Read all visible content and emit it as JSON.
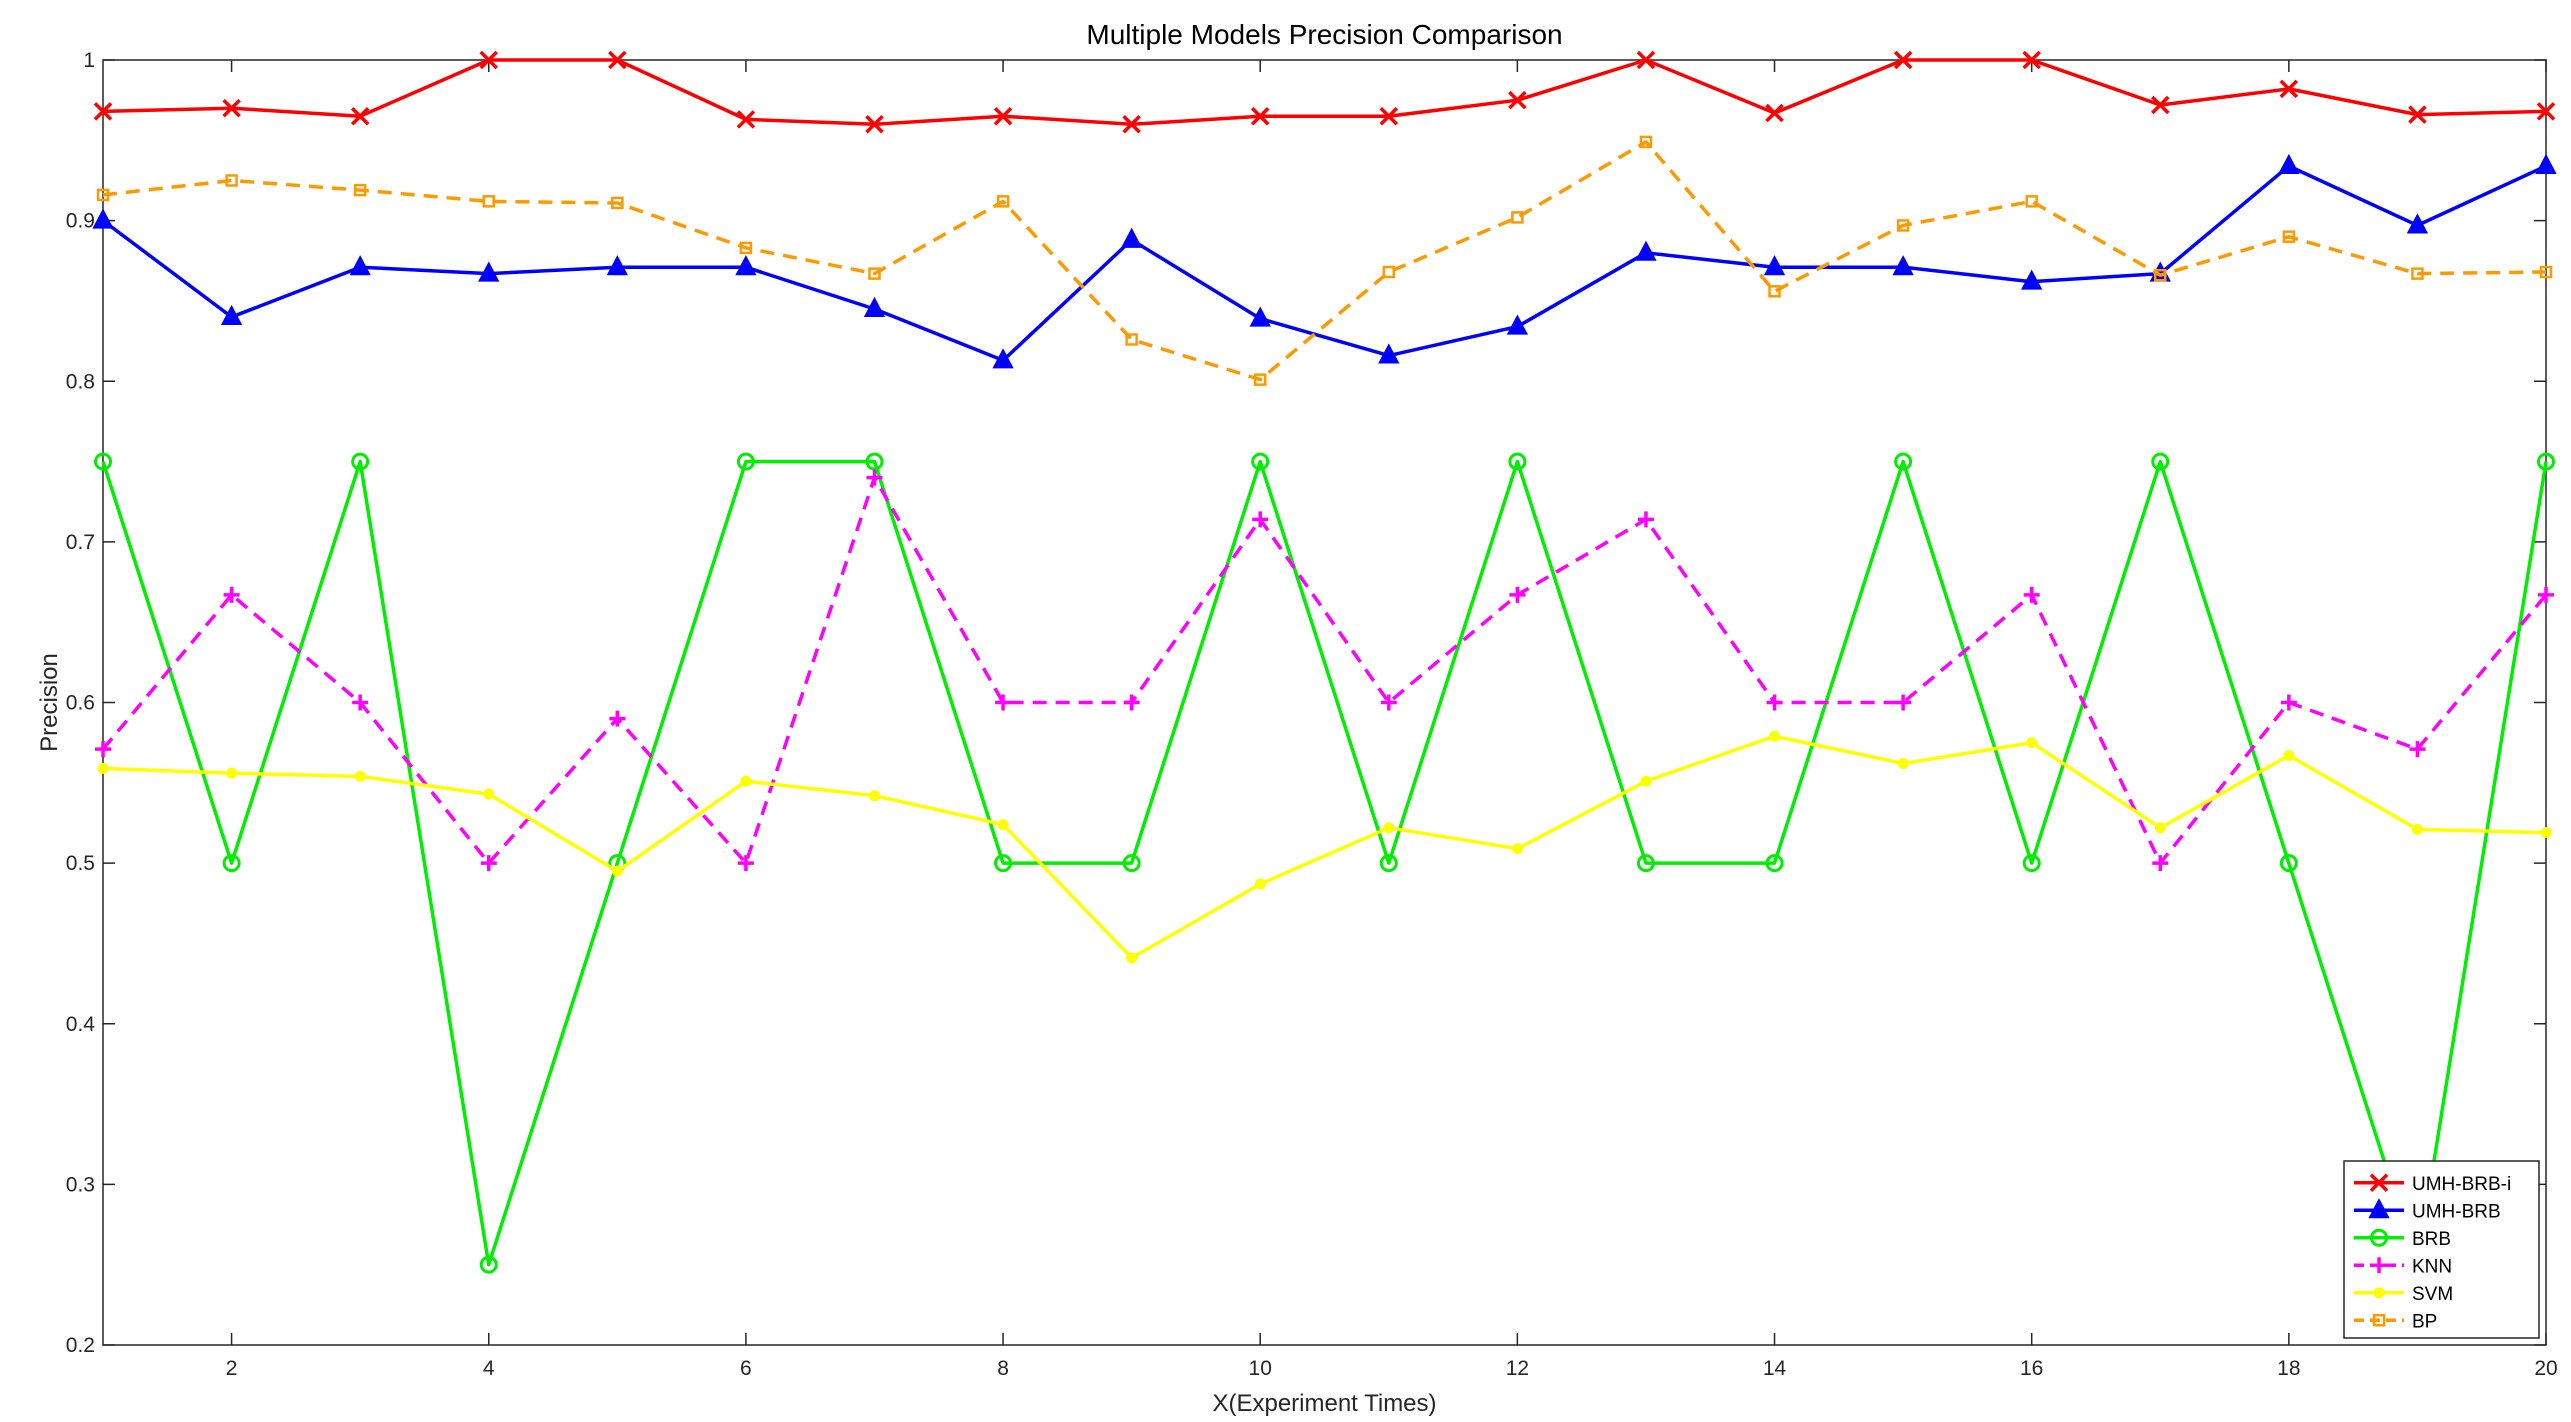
{
  "chart_data": {
    "type": "line",
    "title": "Multiple Models Precision Comparison",
    "xlabel": "X(Experiment Times)",
    "ylabel": "Precision",
    "xlim": [
      1,
      20
    ],
    "ylim": [
      0.2,
      1
    ],
    "xticks": [
      2,
      4,
      6,
      8,
      10,
      12,
      14,
      16,
      18,
      20
    ],
    "yticks": [
      0.2,
      0.3,
      0.4,
      0.5,
      0.6,
      0.7,
      0.8,
      0.9,
      1
    ],
    "ytick_labels": [
      "0.2",
      "0.3",
      "0.4",
      "0.5",
      "0.6",
      "0.7",
      "0.8",
      "0.9",
      "1"
    ],
    "grid": false,
    "legend_position": "bottom-right",
    "x": [
      1,
      2,
      3,
      4,
      5,
      6,
      7,
      8,
      9,
      10,
      11,
      12,
      13,
      14,
      15,
      16,
      17,
      18,
      19,
      20
    ],
    "series": [
      {
        "name": "UMH-BRB-i",
        "color": "#ff0000",
        "dash": "solid",
        "marker": "x",
        "values": [
          0.968,
          0.97,
          0.965,
          1.0,
          1.0,
          0.963,
          0.96,
          0.965,
          0.96,
          0.965,
          0.965,
          0.975,
          1.0,
          0.967,
          1.0,
          1.0,
          0.972,
          0.982,
          0.966,
          0.968
        ]
      },
      {
        "name": "UMH-BRB",
        "color": "#0000ff",
        "dash": "solid",
        "marker": "triangle",
        "values": [
          0.9,
          0.84,
          0.871,
          0.867,
          0.871,
          0.871,
          0.845,
          0.813,
          0.888,
          0.839,
          0.816,
          0.834,
          0.88,
          0.871,
          0.871,
          0.862,
          0.867,
          0.934,
          0.897,
          0.934
        ]
      },
      {
        "name": "BRB",
        "color": "#00ee00",
        "dash": "solid",
        "marker": "circle",
        "values": [
          0.75,
          0.5,
          0.75,
          0.25,
          0.5,
          0.75,
          0.75,
          0.5,
          0.5,
          0.75,
          0.5,
          0.75,
          0.5,
          0.5,
          0.75,
          0.5,
          0.75,
          0.5,
          0.25,
          0.75
        ]
      },
      {
        "name": "KNN",
        "color": "#ff00ff",
        "dash": "dashed",
        "marker": "plus",
        "values": [
          0.571,
          0.667,
          0.6,
          0.5,
          0.59,
          0.5,
          0.74,
          0.6,
          0.6,
          0.714,
          0.6,
          0.667,
          0.714,
          0.6,
          0.6,
          0.667,
          0.5,
          0.6,
          0.571,
          0.667
        ]
      },
      {
        "name": "SVM",
        "color": "#ffff00",
        "dash": "solid",
        "marker": "dot",
        "values": [
          0.559,
          0.556,
          0.554,
          0.543,
          0.495,
          0.551,
          0.542,
          0.524,
          0.441,
          0.487,
          0.522,
          0.509,
          0.551,
          0.579,
          0.562,
          0.575,
          0.522,
          0.567,
          0.521,
          0.519
        ]
      },
      {
        "name": "BP",
        "color": "#ff9900",
        "dash": "dashed",
        "marker": "square",
        "values": [
          0.916,
          0.925,
          0.919,
          0.912,
          0.911,
          0.883,
          0.867,
          0.912,
          0.826,
          0.801,
          0.868,
          0.902,
          0.949,
          0.856,
          0.897,
          0.912,
          0.866,
          0.89,
          0.867,
          0.868
        ]
      }
    ]
  }
}
